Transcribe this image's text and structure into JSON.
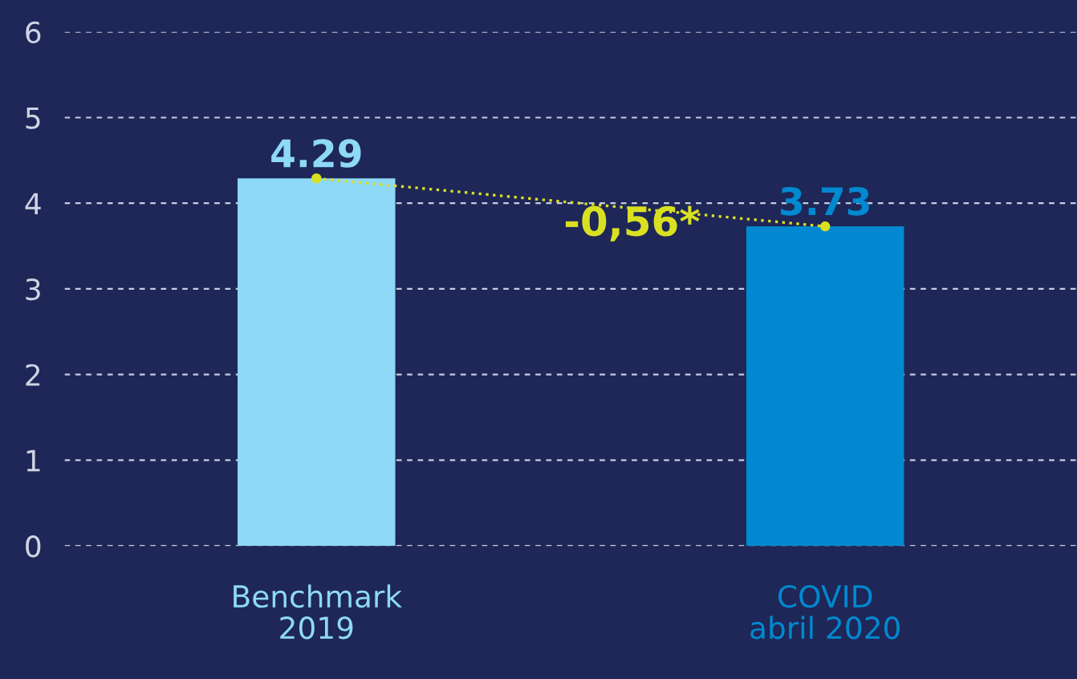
{
  "chart_data": {
    "type": "bar",
    "categories": [
      "Benchmark\n2019",
      "COVID\nabril 2020"
    ],
    "series": [
      {
        "colors": [
          "#8ed8f8",
          "#0089d0"
        ],
        "values": [
          4.29,
          3.73
        ],
        "value_labels": [
          "4.29",
          "3.73"
        ]
      },
      {
        "type": "line",
        "color": "#d9e021",
        "values": [
          4.29,
          3.73
        ],
        "line_style": "dotted",
        "marker": "circle"
      }
    ],
    "ylim": [
      0,
      6
    ],
    "yticks": [
      0,
      1,
      2,
      3,
      4,
      5,
      6
    ],
    "grid": "y",
    "annotations": [
      "-0,56*"
    ]
  }
}
